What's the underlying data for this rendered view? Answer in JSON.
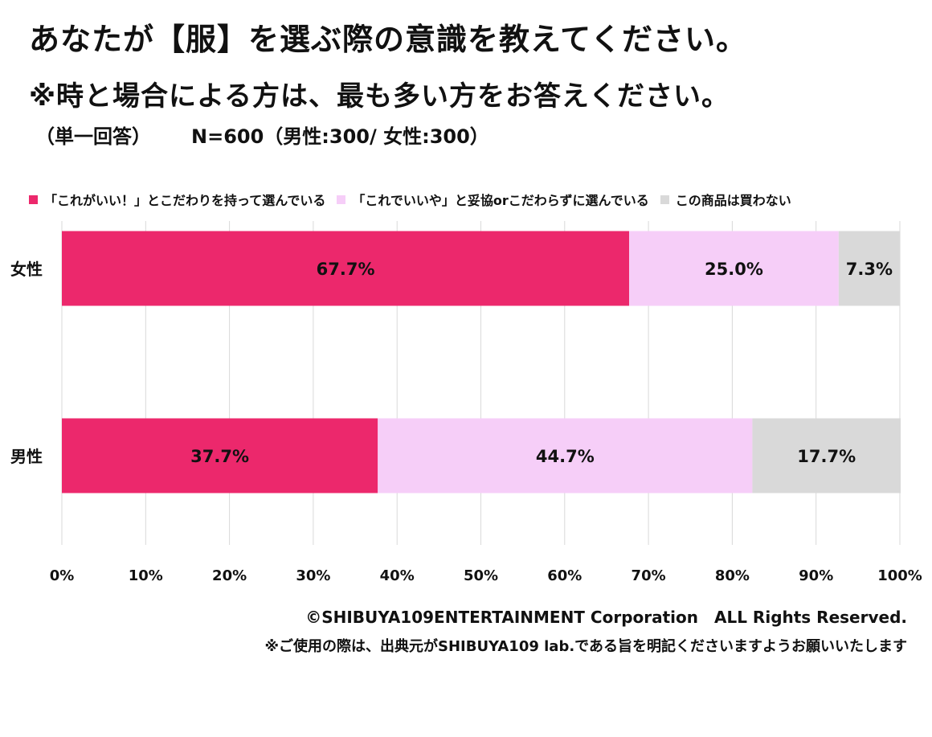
{
  "title_line1": "あなたが【服】を選ぶ際の意識を教えてください。",
  "title_line2": "※時と場合による方は、最も多い方をお答えください。",
  "subtitle_left": "（単一回答）",
  "subtitle_right": "N=600（男性:300/ 女性:300）",
  "footer_copyright": "©SHIBUYA109ENTERTAINMENT Corporation　ALL Rights Reserved.",
  "footer_note": "※ご使用の際は、出典元がSHIBUYA109 lab.である旨を明記くださいますようお願いいたします",
  "colors": {
    "series1": "#EC286C",
    "series2": "#F6CEF8",
    "series3": "#D9D9D9",
    "grid": "#D9D9D9"
  },
  "chart_data": {
    "type": "bar",
    "orientation": "horizontal",
    "stacked": true,
    "categories": [
      "女性",
      "男性"
    ],
    "series": [
      {
        "name": "「これがいい！」とこだわりを持って選んでいる",
        "values": [
          67.7,
          37.7
        ],
        "labels": [
          "67.7%",
          "37.7%"
        ]
      },
      {
        "name": "「これでいいや」と妥協orこだわらずに選んでいる",
        "values": [
          25.0,
          44.7
        ],
        "labels": [
          "25.0%",
          "44.7%"
        ]
      },
      {
        "name": "この商品は買わない",
        "values": [
          7.3,
          17.7
        ],
        "labels": [
          "7.3%",
          "17.7%"
        ]
      }
    ],
    "xlim": [
      0,
      100
    ],
    "xticks": [
      "0%",
      "10%",
      "20%",
      "30%",
      "40%",
      "50%",
      "60%",
      "70%",
      "80%",
      "90%",
      "100%"
    ],
    "legend_position": "top",
    "grid": true
  }
}
